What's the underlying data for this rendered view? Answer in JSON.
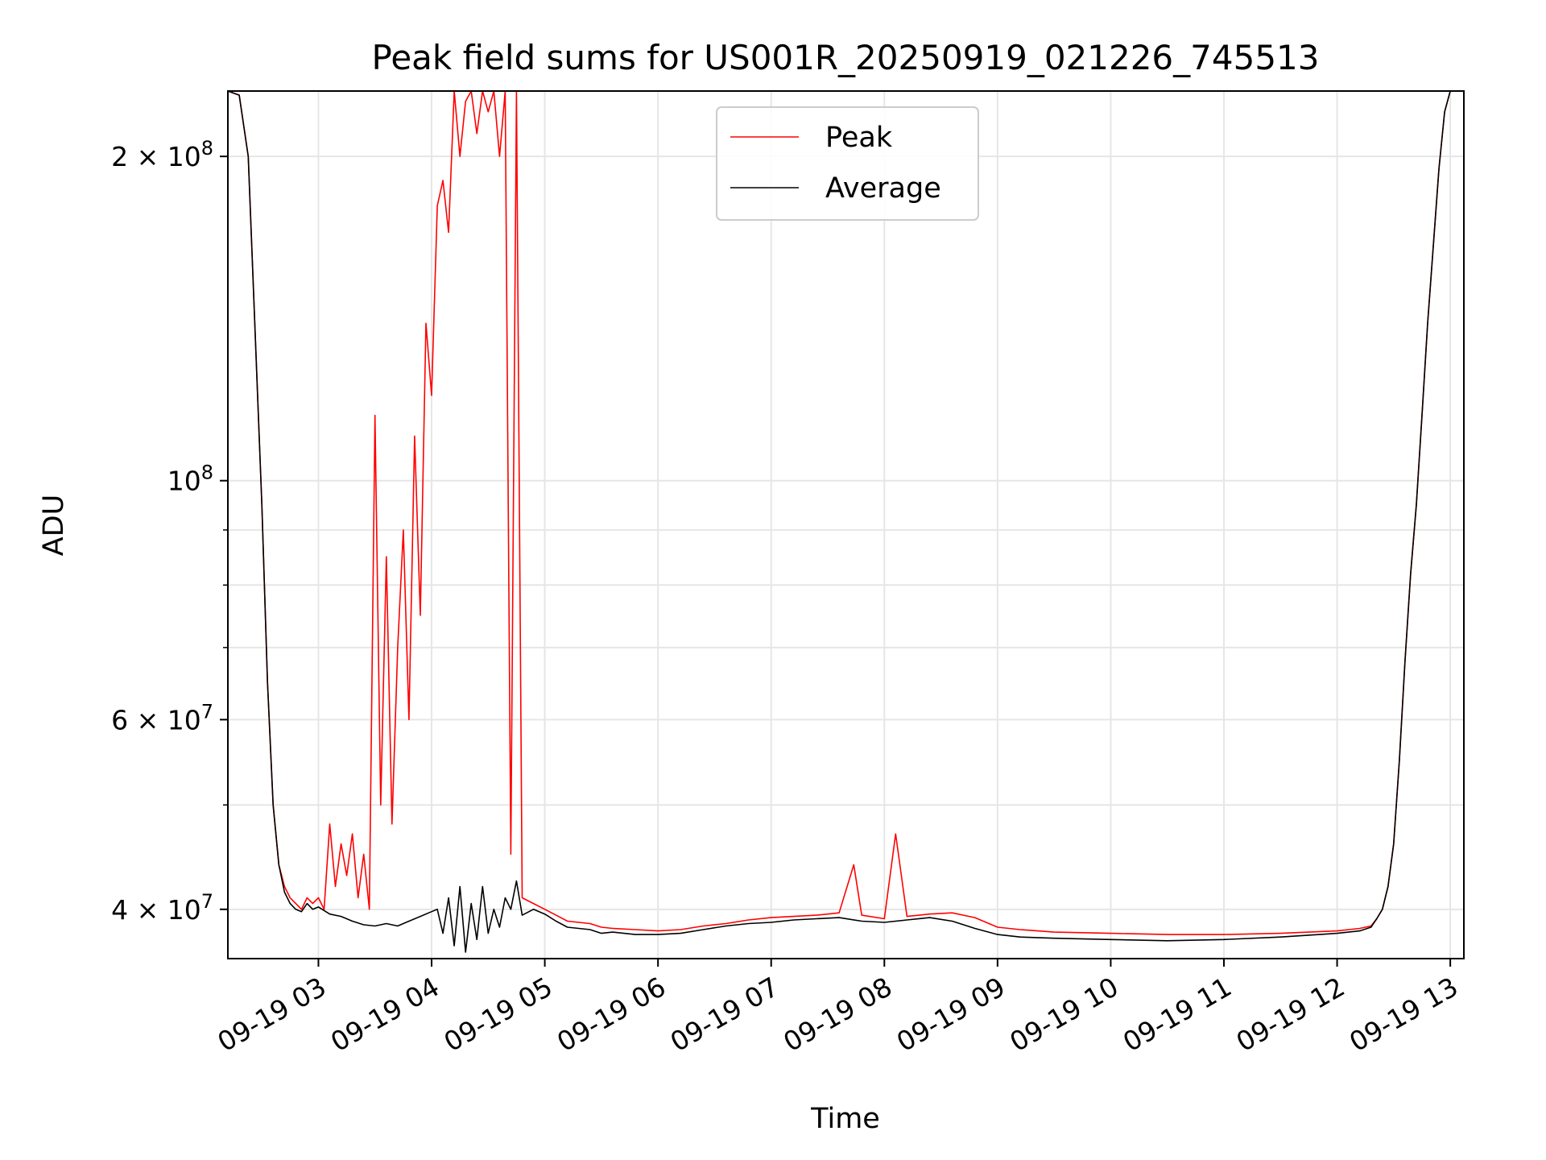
{
  "chart_data": {
    "type": "line",
    "title": "Peak field sums for US001R_20250919_021226_745513",
    "xlabel": "Time",
    "ylabel": "ADU",
    "yscale": "log",
    "ylim": [
      36000000,
      230000000
    ],
    "xlim_hours": [
      2.2,
      13.12
    ],
    "grid": true,
    "legend_position": "upper center",
    "x_ticks": [
      {
        "hour": 3,
        "label": "09-19 03"
      },
      {
        "hour": 4,
        "label": "09-19 04"
      },
      {
        "hour": 5,
        "label": "09-19 05"
      },
      {
        "hour": 6,
        "label": "09-19 06"
      },
      {
        "hour": 7,
        "label": "09-19 07"
      },
      {
        "hour": 8,
        "label": "09-19 08"
      },
      {
        "hour": 9,
        "label": "09-19 09"
      },
      {
        "hour": 10,
        "label": "09-19 10"
      },
      {
        "hour": 11,
        "label": "09-19 11"
      },
      {
        "hour": 12,
        "label": "09-19 12"
      },
      {
        "hour": 13,
        "label": "09-19 13"
      }
    ],
    "y_major_ticks": [
      {
        "value": 40000000,
        "mantissa": "4",
        "exp": "7",
        "label": "4 × 10^7"
      },
      {
        "value": 60000000,
        "mantissa": "6",
        "exp": "7",
        "label": "6 × 10^7"
      },
      {
        "value": 100000000,
        "mantissa": "",
        "exp": "8",
        "label": "10^8"
      },
      {
        "value": 200000000,
        "mantissa": "2",
        "exp": "8",
        "label": "2 × 10^8"
      }
    ],
    "y_minor_ticks": [
      50000000,
      70000000,
      80000000,
      90000000
    ],
    "series": [
      {
        "name": "Peak",
        "color": "#ff0000",
        "x_hours": [
          2.2,
          2.3,
          2.38,
          2.45,
          2.5,
          2.55,
          2.6,
          2.65,
          2.7,
          2.75,
          2.8,
          2.85,
          2.9,
          2.95,
          3.0,
          3.05,
          3.1,
          3.15,
          3.2,
          3.25,
          3.3,
          3.35,
          3.4,
          3.45,
          3.5,
          3.55,
          3.6,
          3.65,
          3.7,
          3.75,
          3.8,
          3.85,
          3.9,
          3.95,
          4.0,
          4.05,
          4.1,
          4.15,
          4.2,
          4.25,
          4.3,
          4.35,
          4.4,
          4.45,
          4.5,
          4.55,
          4.6,
          4.65,
          4.7,
          4.75,
          4.8,
          4.9,
          5.0,
          5.1,
          5.2,
          5.4,
          5.5,
          5.6,
          5.8,
          6.0,
          6.2,
          6.4,
          6.6,
          6.8,
          7.0,
          7.2,
          7.4,
          7.6,
          7.73,
          7.8,
          8.0,
          8.1,
          8.2,
          8.4,
          8.6,
          8.8,
          9.0,
          9.2,
          9.5,
          10.0,
          10.5,
          11.0,
          11.5,
          12.0,
          12.2,
          12.3,
          12.35,
          12.4,
          12.45,
          12.5,
          12.55,
          12.6,
          12.65,
          12.7,
          12.75,
          12.8,
          12.85,
          12.9,
          12.95,
          13.0,
          13.05,
          13.12
        ],
        "values": [
          230000000,
          228000000,
          200000000,
          130000000,
          95000000,
          65000000,
          50000000,
          44000000,
          42000000,
          41000000,
          40500000,
          40000000,
          41000000,
          40500000,
          41000000,
          40000000,
          48000000,
          42000000,
          46000000,
          43000000,
          47000000,
          41000000,
          45000000,
          40000000,
          115000000,
          50000000,
          85000000,
          48000000,
          70000000,
          90000000,
          60000000,
          110000000,
          75000000,
          140000000,
          120000000,
          180000000,
          190000000,
          170000000,
          230000000,
          200000000,
          225000000,
          230000000,
          210000000,
          230000000,
          220000000,
          230000000,
          200000000,
          230000000,
          45000000,
          230000000,
          41000000,
          40500000,
          40000000,
          39500000,
          39000000,
          38800000,
          38500000,
          38400000,
          38300000,
          38200000,
          38300000,
          38600000,
          38800000,
          39100000,
          39300000,
          39400000,
          39500000,
          39700000,
          44000000,
          39500000,
          39200000,
          47000000,
          39400000,
          39600000,
          39700000,
          39300000,
          38500000,
          38300000,
          38100000,
          38000000,
          37900000,
          37900000,
          38000000,
          38200000,
          38400000,
          38600000,
          39200000,
          40000000,
          42000000,
          46000000,
          55000000,
          68000000,
          82000000,
          95000000,
          115000000,
          140000000,
          165000000,
          195000000,
          220000000,
          230000000,
          230000000,
          230000000
        ]
      },
      {
        "name": "Average",
        "color": "#000000",
        "x_hours": [
          2.2,
          2.3,
          2.38,
          2.45,
          2.5,
          2.55,
          2.6,
          2.65,
          2.7,
          2.75,
          2.8,
          2.85,
          2.9,
          2.95,
          3.0,
          3.1,
          3.2,
          3.3,
          3.4,
          3.5,
          3.6,
          3.7,
          3.8,
          3.9,
          4.0,
          4.05,
          4.1,
          4.15,
          4.2,
          4.25,
          4.3,
          4.35,
          4.4,
          4.45,
          4.5,
          4.55,
          4.6,
          4.65,
          4.7,
          4.75,
          4.8,
          4.9,
          5.0,
          5.1,
          5.2,
          5.4,
          5.5,
          5.6,
          5.8,
          6.0,
          6.2,
          6.4,
          6.6,
          6.8,
          7.0,
          7.2,
          7.4,
          7.6,
          7.8,
          8.0,
          8.2,
          8.4,
          8.6,
          8.8,
          9.0,
          9.2,
          9.5,
          10.0,
          10.5,
          11.0,
          11.5,
          12.0,
          12.2,
          12.3,
          12.35,
          12.4,
          12.45,
          12.5,
          12.55,
          12.6,
          12.65,
          12.7,
          12.75,
          12.8,
          12.85,
          12.9,
          12.95,
          13.0,
          13.05,
          13.12
        ],
        "values": [
          230000000,
          228000000,
          200000000,
          130000000,
          95000000,
          65000000,
          50000000,
          44000000,
          41500000,
          40500000,
          40000000,
          39800000,
          40500000,
          40000000,
          40200000,
          39600000,
          39400000,
          39000000,
          38700000,
          38600000,
          38800000,
          38600000,
          39000000,
          39400000,
          39800000,
          40000000,
          38000000,
          41000000,
          37000000,
          42000000,
          36500000,
          40500000,
          37500000,
          42000000,
          38000000,
          40000000,
          38500000,
          41000000,
          40000000,
          42500000,
          39500000,
          40000000,
          39600000,
          39000000,
          38500000,
          38300000,
          38000000,
          38100000,
          37900000,
          37900000,
          38000000,
          38300000,
          38600000,
          38800000,
          38900000,
          39100000,
          39200000,
          39300000,
          39000000,
          38900000,
          39100000,
          39300000,
          39000000,
          38400000,
          37900000,
          37700000,
          37600000,
          37500000,
          37400000,
          37500000,
          37700000,
          38000000,
          38200000,
          38500000,
          39200000,
          40000000,
          42000000,
          46000000,
          55000000,
          68000000,
          82000000,
          95000000,
          115000000,
          140000000,
          165000000,
          195000000,
          220000000,
          230000000,
          230000000,
          230000000
        ]
      }
    ]
  }
}
